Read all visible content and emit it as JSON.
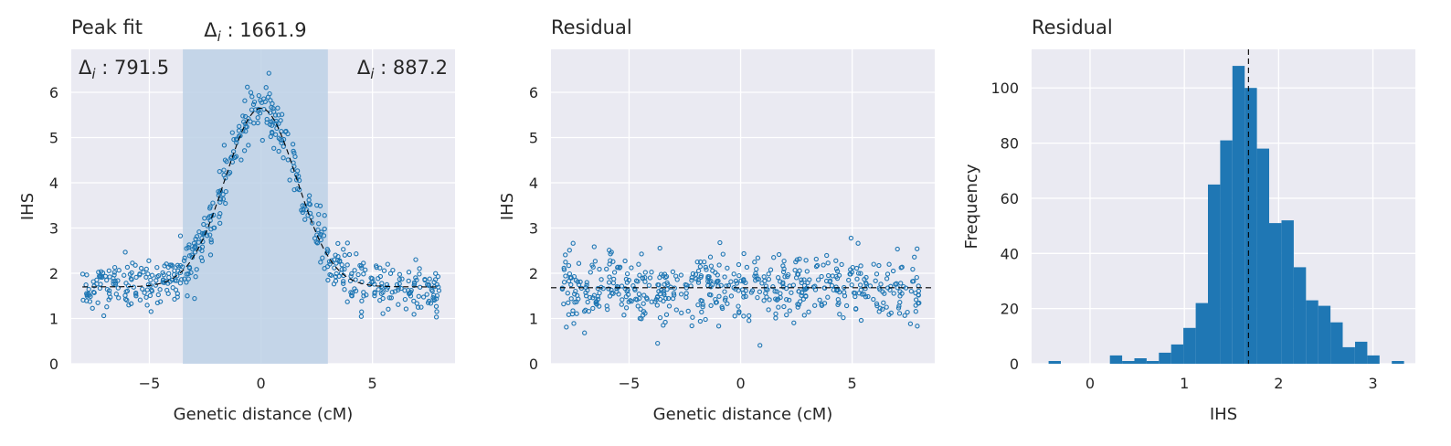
{
  "colors": {
    "axes_bg": "#eaeaf2",
    "grid": "#ffffff",
    "points": "#1f77b4",
    "bars": "#1f77b4",
    "span": "#bdd1e6",
    "reference_line": "#000000",
    "text": "#262626"
  },
  "chart_data": [
    {
      "type": "scatter",
      "title": "Peak fit",
      "xlabel": "Genetic distance (cM)",
      "ylabel": "IHS",
      "xlim": [
        -8.5,
        8.7
      ],
      "ylim": [
        0,
        6.95
      ],
      "xticks": [
        -5,
        0,
        5
      ],
      "xtick_labels": [
        "−5",
        "0",
        "5"
      ],
      "yticks": [
        0,
        1,
        2,
        3,
        4,
        5,
        6
      ],
      "ytick_labels": [
        "0",
        "1",
        "2",
        "3",
        "4",
        "5",
        "6"
      ],
      "grid": true,
      "points_per_side": 270,
      "x_range": [
        -8,
        8
      ],
      "baseline": 1.7,
      "peak_height": 4.0,
      "peak_center": 0,
      "peak_width_sd": 1.6,
      "noise_sd": 0.3,
      "highlight_span": [
        -3.5,
        3.0
      ],
      "fit_curve": {
        "style": "dashed",
        "baseline": 1.7,
        "amplitude": 3.95,
        "center": 0,
        "sd": 1.6
      },
      "annotations": [
        {
          "id": "left",
          "symbol": "Δ",
          "subscript": "i",
          "value_text": " : 791.5",
          "position": "top-left"
        },
        {
          "id": "center",
          "symbol": "Δ",
          "subscript": "i",
          "value_text": " : 1661.9",
          "position": "above-span"
        },
        {
          "id": "right",
          "symbol": "Δ",
          "subscript": "i",
          "value_text": " : 887.2",
          "position": "top-right"
        }
      ]
    },
    {
      "type": "scatter",
      "title": "Residual",
      "xlabel": "Genetic distance (cM)",
      "ylabel": "IHS",
      "xlim": [
        -8.5,
        8.7
      ],
      "ylim": [
        0,
        6.95
      ],
      "xticks": [
        -5,
        0,
        5
      ],
      "xtick_labels": [
        "−5",
        "0",
        "5"
      ],
      "yticks": [
        0,
        1,
        2,
        3,
        4,
        5,
        6
      ],
      "ytick_labels": [
        "0",
        "1",
        "2",
        "3",
        "4",
        "5",
        "6"
      ],
      "grid": true,
      "points_per_side": 270,
      "x_range": [
        -8,
        8
      ],
      "baseline": 1.7,
      "noise_sd": 0.38,
      "reference_line": {
        "style": "dashed",
        "y": 1.68
      }
    },
    {
      "type": "bar",
      "title": "Residual",
      "xlabel": "IHS",
      "ylabel": "Frequency",
      "xlim": [
        -0.62,
        3.45
      ],
      "ylim": [
        0,
        114
      ],
      "xticks": [
        0,
        1,
        2,
        3
      ],
      "xtick_labels": [
        "0",
        "1",
        "2",
        "3"
      ],
      "yticks": [
        0,
        20,
        40,
        60,
        80,
        100
      ],
      "ytick_labels": [
        "0",
        "20",
        "40",
        "60",
        "80",
        "100"
      ],
      "grid": true,
      "bin_width": 0.13,
      "bins": [
        {
          "x0": -0.44,
          "count": 1
        },
        {
          "x0": -0.31,
          "count": 0
        },
        {
          "x0": -0.18,
          "count": 0
        },
        {
          "x0": -0.05,
          "count": 0
        },
        {
          "x0": 0.08,
          "count": 0
        },
        {
          "x0": 0.21,
          "count": 3
        },
        {
          "x0": 0.34,
          "count": 1
        },
        {
          "x0": 0.47,
          "count": 2
        },
        {
          "x0": 0.6,
          "count": 1
        },
        {
          "x0": 0.73,
          "count": 4
        },
        {
          "x0": 0.86,
          "count": 7
        },
        {
          "x0": 0.99,
          "count": 13
        },
        {
          "x0": 1.12,
          "count": 22
        },
        {
          "x0": 1.25,
          "count": 65
        },
        {
          "x0": 1.38,
          "count": 81
        },
        {
          "x0": 1.51,
          "count": 108
        },
        {
          "x0": 1.64,
          "count": 100
        },
        {
          "x0": 1.77,
          "count": 78
        },
        {
          "x0": 1.9,
          "count": 51
        },
        {
          "x0": 2.03,
          "count": 52
        },
        {
          "x0": 2.16,
          "count": 35
        },
        {
          "x0": 2.29,
          "count": 23
        },
        {
          "x0": 2.42,
          "count": 21
        },
        {
          "x0": 2.55,
          "count": 15
        },
        {
          "x0": 2.68,
          "count": 6
        },
        {
          "x0": 2.81,
          "count": 8
        },
        {
          "x0": 2.94,
          "count": 3
        },
        {
          "x0": 3.07,
          "count": 0
        },
        {
          "x0": 3.2,
          "count": 1
        }
      ],
      "reference_line": {
        "style": "dashed",
        "x": 1.68
      }
    }
  ]
}
